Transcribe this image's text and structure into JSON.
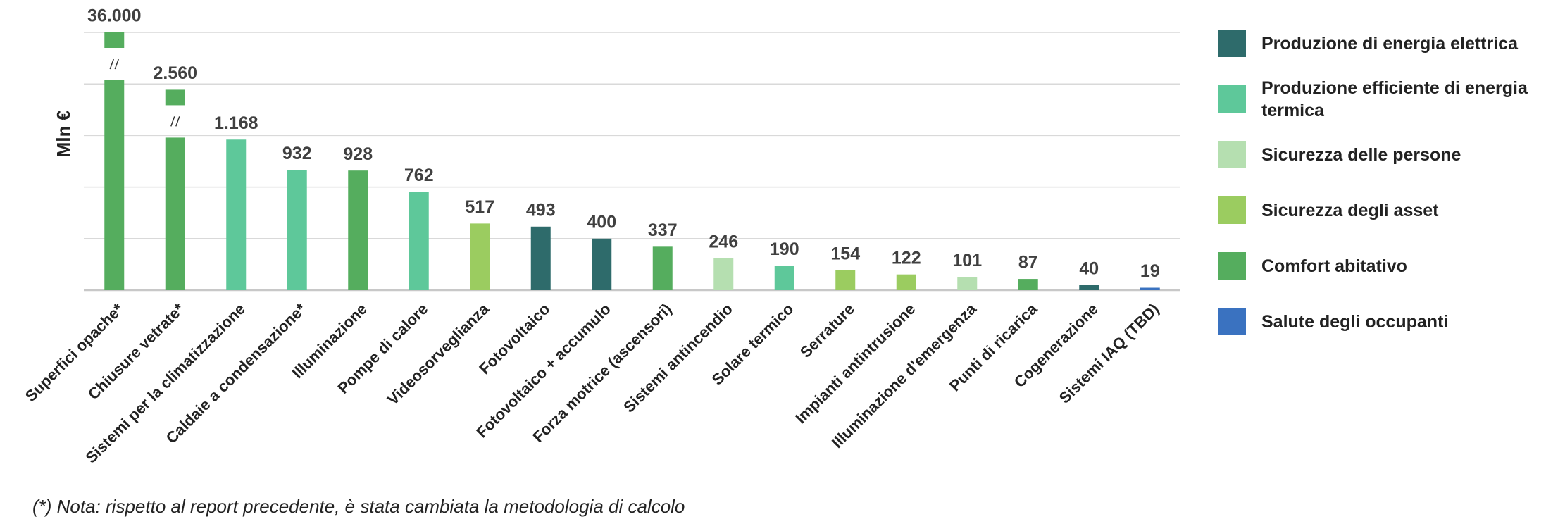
{
  "chart_data": {
    "type": "bar",
    "y_label": "Mln €",
    "categories": [
      "Superfici opache*",
      "Chiusure vetrate*",
      "Sistemi per la climatizzazione",
      "Caldaie a condensazione*",
      "Illuminazione",
      "Pompe di calore",
      "Videosorveglianza",
      "Fotovoltaico",
      "Fotovoltaico + accumulo",
      "Forza motrice (ascensori)",
      "Sistemi antincendio",
      "Solare termico",
      "Serrature",
      "Impianti antintrusione",
      "Illuminazione d'emergenza",
      "Punti di ricarica",
      "Cogenerazione",
      "Sistemi IAQ (TBD)"
    ],
    "values": [
      36000,
      2560,
      1168,
      932,
      928,
      762,
      517,
      493,
      400,
      337,
      246,
      190,
      154,
      122,
      101,
      87,
      40,
      19
    ],
    "value_labels": [
      "36.000",
      "2.560",
      "1.168",
      "932",
      "928",
      "762",
      "517",
      "493",
      "400",
      "337",
      "246",
      "190",
      "154",
      "122",
      "101",
      "87",
      "40",
      "19"
    ],
    "colors": [
      "#55ad5e",
      "#55ad5e",
      "#5ec89a",
      "#5ec89a",
      "#55ad5e",
      "#5ec89a",
      "#9bcc60",
      "#2e6b6b",
      "#2e6b6b",
      "#55ad5e",
      "#b5dfb0",
      "#5ec89a",
      "#9bcc60",
      "#9bcc60",
      "#b5dfb0",
      "#55ad5e",
      "#2e6b6b",
      "#3a72c0"
    ],
    "legend": [
      {
        "name": "Produzione di energia elettrica",
        "color": "#2e6b6b"
      },
      {
        "name": "Produzione efficiente di energia termica",
        "color": "#5ec89a"
      },
      {
        "name": "Sicurezza delle persone",
        "color": "#b5dfb0"
      },
      {
        "name": "Sicurezza degli asset",
        "color": "#9bcc60"
      },
      {
        "name": "Comfort abitativo",
        "color": "#55ad5e"
      },
      {
        "name": "Salute degli occupanti",
        "color": "#3a72c0"
      }
    ],
    "ylim": [
      0,
      2000
    ],
    "yticks": [
      0,
      400,
      800,
      1200,
      1600,
      2000
    ],
    "grid": true,
    "footnote": "(*) Nota: rispetto al report precedente, è stata cambiata la metodologia  di calcolo"
  }
}
